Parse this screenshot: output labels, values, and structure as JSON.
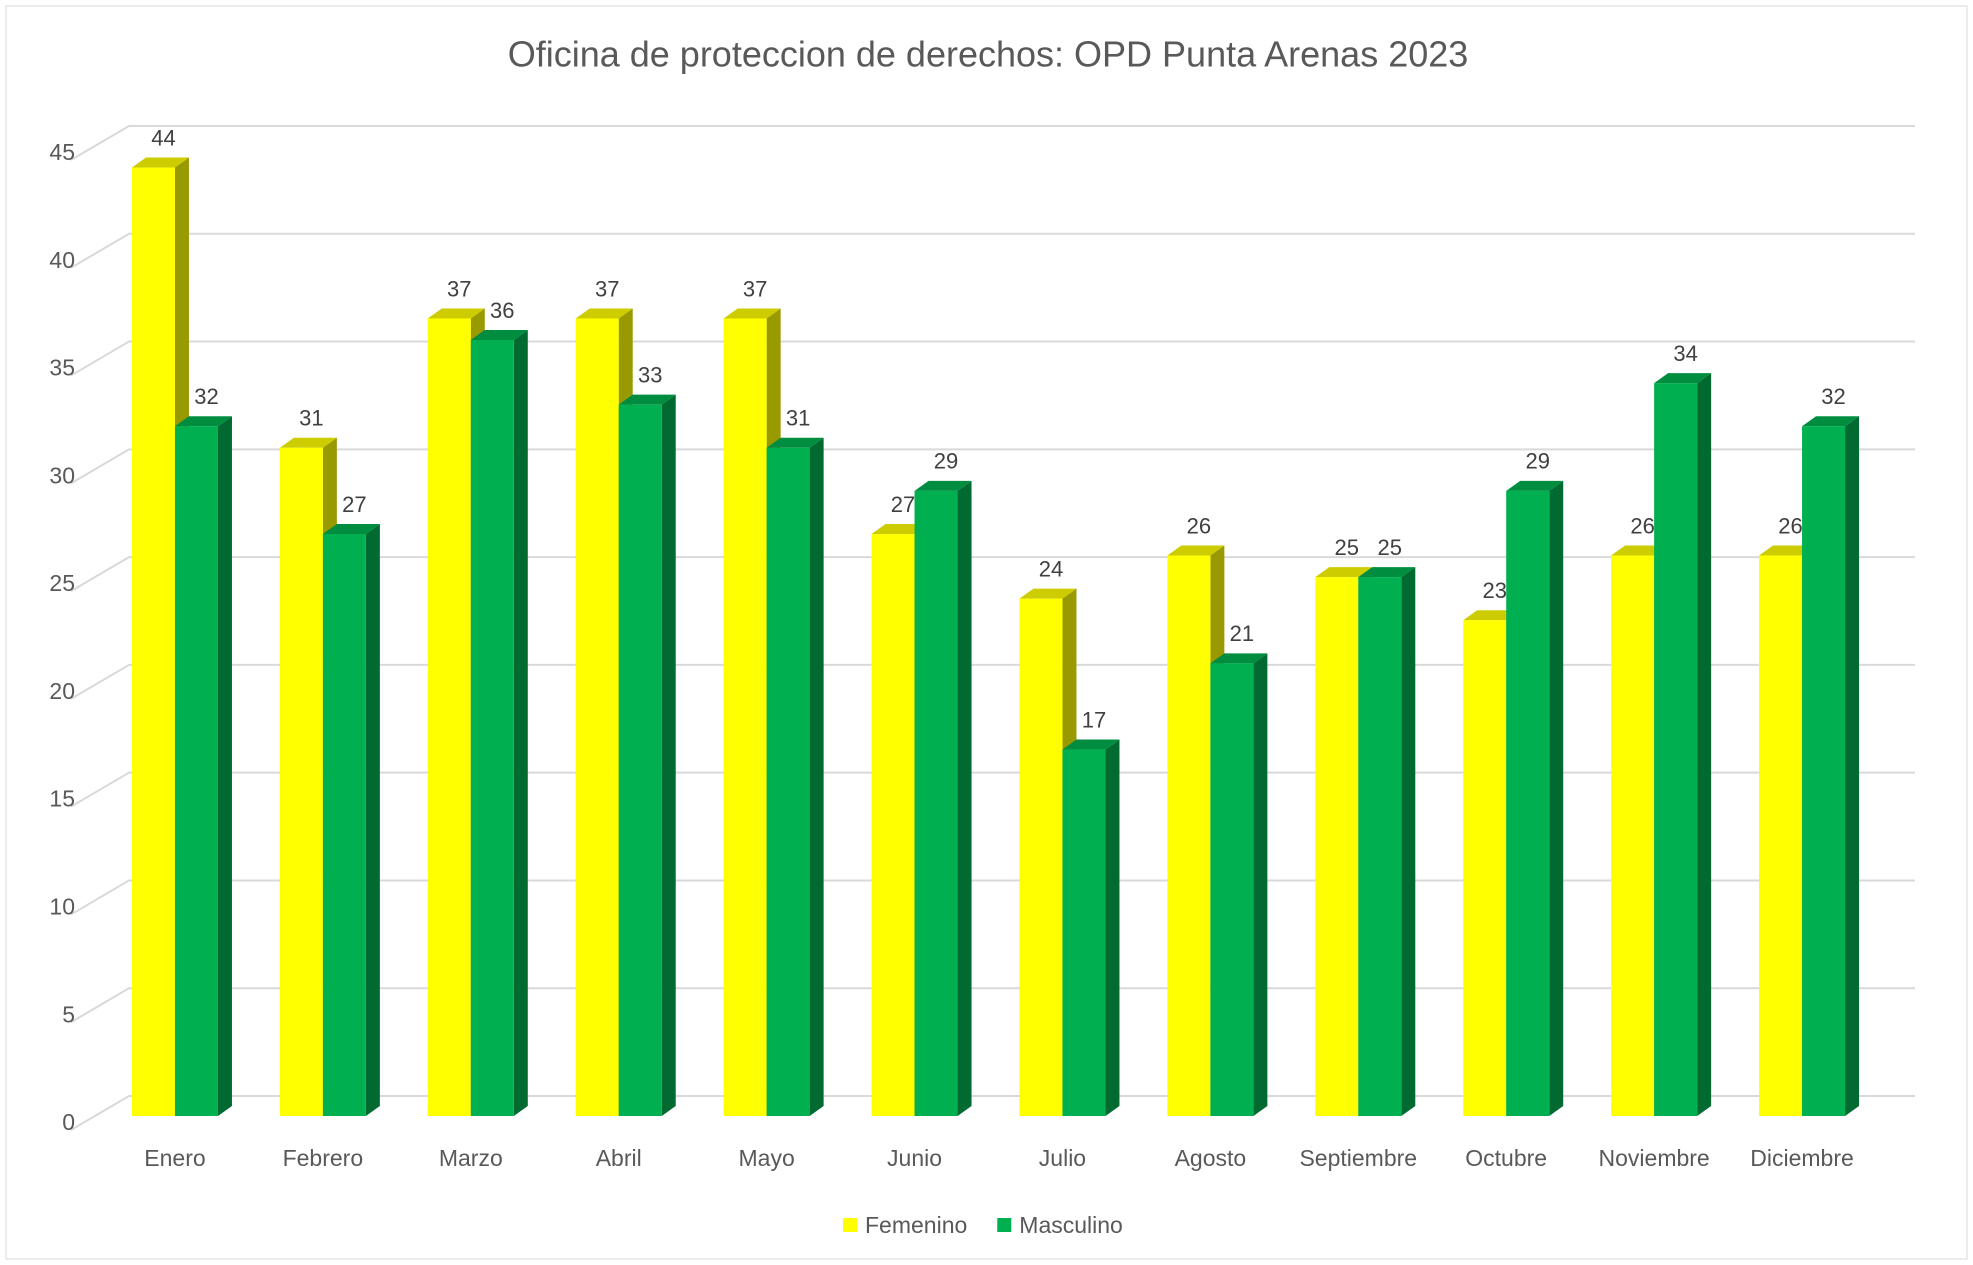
{
  "chart_data": {
    "type": "bar3d",
    "title": "Oficina de proteccion de derechos: OPD Punta Arenas 2023",
    "categories": [
      "Enero",
      "Febrero",
      "Marzo",
      "Abril",
      "Mayo",
      "Junio",
      "Julio",
      "Agosto",
      "Septiembre",
      "Octubre",
      "Noviembre",
      "Diciembre"
    ],
    "series": [
      {
        "name": "Femenino",
        "color": "#ffff00",
        "values": [
          44,
          31,
          37,
          37,
          37,
          27,
          24,
          26,
          25,
          23,
          26,
          26
        ]
      },
      {
        "name": "Masculino",
        "color": "#00b050",
        "values": [
          32,
          27,
          36,
          33,
          31,
          29,
          17,
          21,
          25,
          29,
          34,
          32
        ]
      }
    ],
    "ylim": [
      0,
      45
    ],
    "yticks": [
      0,
      5,
      10,
      15,
      20,
      25,
      30,
      35,
      40,
      45
    ],
    "grid": true,
    "legend": "bottom"
  }
}
